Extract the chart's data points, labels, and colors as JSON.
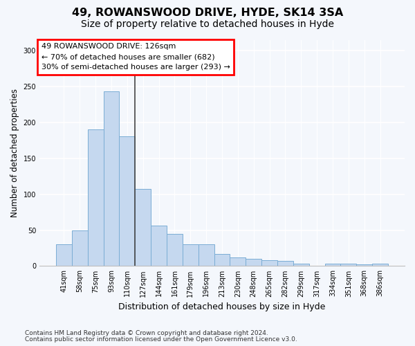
{
  "title": "49, ROWANSWOOD DRIVE, HYDE, SK14 3SA",
  "subtitle": "Size of property relative to detached houses in Hyde",
  "xlabel": "Distribution of detached houses by size in Hyde",
  "ylabel": "Number of detached properties",
  "footnote1": "Contains HM Land Registry data © Crown copyright and database right 2024.",
  "footnote2": "Contains public sector information licensed under the Open Government Licence v3.0.",
  "annotation_line1": "49 ROWANSWOOD DRIVE: 126sqm",
  "annotation_line2": "← 70% of detached houses are smaller (682)",
  "annotation_line3": "30% of semi-detached houses are larger (293) →",
  "bar_labels": [
    "41sqm",
    "58sqm",
    "75sqm",
    "93sqm",
    "110sqm",
    "127sqm",
    "144sqm",
    "161sqm",
    "179sqm",
    "196sqm",
    "213sqm",
    "230sqm",
    "248sqm",
    "265sqm",
    "282sqm",
    "299sqm",
    "317sqm",
    "334sqm",
    "351sqm",
    "368sqm",
    "386sqm"
  ],
  "bar_values": [
    30,
    50,
    190,
    243,
    181,
    107,
    56,
    45,
    30,
    30,
    17,
    12,
    10,
    8,
    7,
    3,
    0,
    3,
    3,
    2,
    3
  ],
  "bar_color": "#c5d8ef",
  "bar_edge_color": "#7aadd4",
  "vline_x": 4.5,
  "vline_color": "#444444",
  "ylim_max": 315,
  "yticks": [
    0,
    50,
    100,
    150,
    200,
    250,
    300
  ],
  "bg_color": "#f4f7fc",
  "grid_color": "#ffffff",
  "title_fontsize": 11.5,
  "subtitle_fontsize": 10,
  "ylabel_fontsize": 8.5,
  "xlabel_fontsize": 9,
  "tick_fontsize": 7,
  "annot_fontsize": 8,
  "footnote_fontsize": 6.5
}
